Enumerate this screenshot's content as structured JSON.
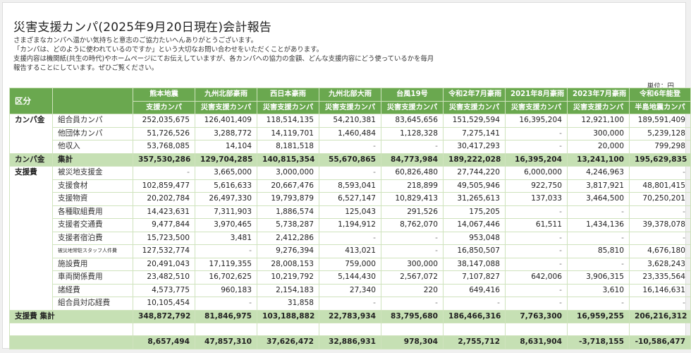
{
  "page": {
    "title": "災害支援カンパ(2025年9月20日現在)会計報告",
    "intro_lines": [
      "さまざまなカンパへ温かい気持ちと意志のご協力たいへんありがとうございます。",
      "「カンパは、どのように使われているのですか」という大切なお問い合わせをいただくことがあります。",
      "支援内容は機関紙(共生の時代)やホームページにてお伝えしていますが、各カンパへの協力の金額、どんな支援内容にどう使っているかを毎月",
      "報告することにしています。ぜひご覧ください。"
    ],
    "unit_label": "単位：円"
  },
  "table": {
    "header": {
      "kubun": "区分",
      "columns": [
        {
          "line1": "熊本地震",
          "line2": "支援カンパ"
        },
        {
          "line1": "九州北部豪雨",
          "line2": "災害支援カンパ"
        },
        {
          "line1": "西日本豪雨",
          "line2": "災害支援カンパ"
        },
        {
          "line1": "九州北部大雨",
          "line2": "災害支援カンパ"
        },
        {
          "line1": "台風19号",
          "line2": "災害支援カンパ"
        },
        {
          "line1": "令和2年7月豪雨",
          "line2": "災害支援カンパ"
        },
        {
          "line1": "2021年8月豪雨",
          "line2": "災害支援カンパ"
        },
        {
          "line1": "2023年7月豪雨",
          "line2": "災害支援カンパ"
        },
        {
          "line1": "令和6年能登",
          "line2": "半島地震カンパ"
        }
      ]
    },
    "income": {
      "category": "カンパ金",
      "rows": [
        {
          "label": "組合員カンパ",
          "values": [
            "252,035,675",
            "126,401,409",
            "118,514,135",
            "54,210,381",
            "83,645,656",
            "151,529,594",
            "16,395,204",
            "12,921,100",
            "189,591,409"
          ]
        },
        {
          "label": "他団体カンパ",
          "values": [
            "51,726,526",
            "3,288,772",
            "14,119,701",
            "1,460,484",
            "1,128,328",
            "7,275,141",
            "-",
            "300,000",
            "5,239,128"
          ]
        },
        {
          "label": "他収入",
          "values": [
            "53,768,085",
            "14,104",
            "8,181,518",
            "-",
            "-",
            "30,417,293",
            "-",
            "20,000",
            "799,298"
          ]
        }
      ],
      "total": {
        "label1": "カンパ金",
        "label2": "集計",
        "values": [
          "357,530,286",
          "129,704,285",
          "140,815,354",
          "55,670,865",
          "84,773,984",
          "189,222,028",
          "16,395,204",
          "13,241,100",
          "195,629,835"
        ]
      }
    },
    "expense": {
      "category": "支援費",
      "rows": [
        {
          "label": "被災地支援金",
          "values": [
            "-",
            "3,665,000",
            "3,000,000",
            "-",
            "60,826,480",
            "27,744,220",
            "6,000,000",
            "4,246,963",
            "-"
          ]
        },
        {
          "label": "支援食材",
          "values": [
            "102,859,477",
            "5,616,633",
            "20,667,476",
            "8,593,041",
            "218,899",
            "49,505,946",
            "922,750",
            "3,817,921",
            "48,801,415"
          ]
        },
        {
          "label": "支援物資",
          "values": [
            "20,202,784",
            "26,497,330",
            "19,793,879",
            "6,527,147",
            "10,829,413",
            "31,265,613",
            "137,033",
            "3,464,500",
            "70,250,201"
          ]
        },
        {
          "label": "各種取組費用",
          "values": [
            "14,423,631",
            "7,311,903",
            "1,886,574",
            "125,043",
            "291,526",
            "175,205",
            "-",
            "-",
            "-"
          ]
        },
        {
          "label": "支援者交通費",
          "values": [
            "9,477,844",
            "3,970,465",
            "5,738,287",
            "1,194,912",
            "8,762,070",
            "14,067,446",
            "61,511",
            "1,434,136",
            "39,378,078"
          ]
        },
        {
          "label": "支援者宿泊費",
          "values": [
            "15,723,500",
            "3,481",
            "2,412,286",
            "-",
            "-",
            "953,048",
            "-",
            "-",
            "-"
          ]
        },
        {
          "label": "被災地常駐スタッフ人件費",
          "values": [
            "127,532,774",
            "-",
            "9,276,394",
            "413,021",
            "-",
            "16,850,507",
            "-",
            "85,810",
            "4,676,180"
          ]
        },
        {
          "label": "施設費用",
          "values": [
            "20,491,043",
            "17,119,355",
            "28,008,153",
            "759,000",
            "300,000",
            "38,147,088",
            "-",
            "-",
            "3,628,243"
          ]
        },
        {
          "label": "車両関係費用",
          "values": [
            "23,482,510",
            "16,702,625",
            "10,219,792",
            "5,144,430",
            "2,567,072",
            "7,107,827",
            "642,006",
            "3,906,315",
            "23,335,564"
          ]
        },
        {
          "label": "諸経費",
          "values": [
            "4,573,775",
            "960,183",
            "2,154,183",
            "27,340",
            "220",
            "649,416",
            "-",
            "3,610",
            "16,146,631"
          ]
        },
        {
          "label": "組合員対応経費",
          "values": [
            "10,105,454",
            "-",
            "31,858",
            "-",
            "-",
            "-",
            "-",
            "-",
            "-"
          ]
        }
      ],
      "total": {
        "label": "支援費 集計",
        "values": [
          "348,872,792",
          "81,846,975",
          "103,188,882",
          "22,783,934",
          "83,795,680",
          "186,466,316",
          "7,763,300",
          "16,959,255",
          "206,216,312"
        ]
      }
    },
    "balance": {
      "label": "",
      "values": [
        "8,657,494",
        "47,857,310",
        "37,626,472",
        "32,886,931",
        "978,304",
        "2,755,712",
        "8,631,904",
        "-3,718,155",
        "-10,586,477"
      ]
    }
  },
  "colors": {
    "header_green": "#6aa84f",
    "total_green": "#c6e0b4",
    "grid_line": "#cfe3bd"
  }
}
